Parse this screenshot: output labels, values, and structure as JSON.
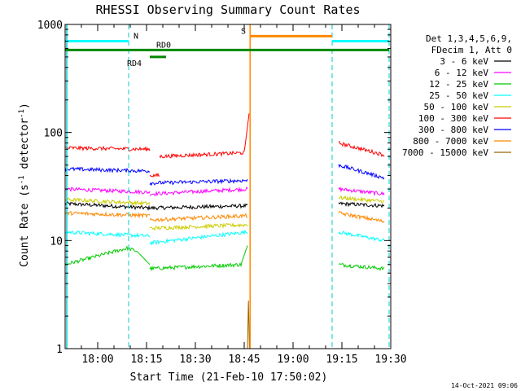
{
  "chart_data": {
    "type": "line",
    "title": "RHESSI Observing Summary Count Rates",
    "xlabel": "Start Time (21-Feb-10 17:50:02)",
    "ylabel": "Count Rate (s",
    "ylabel_sup1": "-1",
    "ylabel_mid": " detector",
    "ylabel_sup2": "-1",
    "ylabel_end": ")",
    "y_scale": "log",
    "ylim": [
      1,
      1000
    ],
    "xlim_minutes": [
      0,
      100
    ],
    "x_ticks": [
      {
        "t": 10,
        "label": "18:00"
      },
      {
        "t": 25,
        "label": "18:15"
      },
      {
        "t": 40,
        "label": "18:30"
      },
      {
        "t": 55,
        "label": "18:45"
      },
      {
        "t": 70,
        "label": "19:00"
      },
      {
        "t": 85,
        "label": "19:15"
      },
      {
        "t": 100,
        "label": "19:30"
      }
    ],
    "y_ticks": [
      {
        "v": 1,
        "label": "1"
      },
      {
        "v": 10,
        "label": "10"
      },
      {
        "v": 100,
        "label": "100"
      },
      {
        "v": 1000,
        "label": "1000"
      }
    ],
    "legend": {
      "position": "right",
      "header": [
        "Det 1,3,4,5,6,9,",
        "FDecim 1, Att 0"
      ]
    },
    "series": [
      {
        "name": "3 - 6 keV",
        "color": "#000000",
        "segments": [
          {
            "x": [
              0,
              26
            ],
            "y": [
              22,
              20
            ]
          },
          {
            "x": [
              26,
              56
            ],
            "y": [
              20,
              21
            ]
          },
          {
            "x": [
              84,
              98
            ],
            "y": [
              22,
              21
            ]
          }
        ]
      },
      {
        "name": "6 - 12 keV",
        "color": "#ff00ff",
        "segments": [
          {
            "x": [
              0,
              26
            ],
            "y": [
              30,
              28
            ]
          },
          {
            "x": [
              26,
              56
            ],
            "y": [
              27,
              30
            ]
          },
          {
            "x": [
              84,
              98
            ],
            "y": [
              30,
              27
            ]
          }
        ]
      },
      {
        "name": "12 - 25 keV",
        "color": "#00cc00",
        "segments": [
          {
            "x": [
              0,
              19,
              22,
              26
            ],
            "y": [
              6,
              8.5,
              8,
              6
            ]
          },
          {
            "x": [
              26,
              54,
              56
            ],
            "y": [
              5.5,
              6,
              9
            ]
          },
          {
            "x": [
              84,
              98
            ],
            "y": [
              6,
              5.5
            ]
          }
        ]
      },
      {
        "name": "25 - 50 keV",
        "color": "#00ffff",
        "segments": [
          {
            "x": [
              0,
              26
            ],
            "y": [
              12,
              11
            ]
          },
          {
            "x": [
              26,
              56
            ],
            "y": [
              9.5,
              12
            ]
          },
          {
            "x": [
              84,
              98
            ],
            "y": [
              12,
              10
            ]
          }
        ]
      },
      {
        "name": "50 - 100 keV",
        "color": "#cccc00",
        "segments": [
          {
            "x": [
              0,
              26
            ],
            "y": [
              24,
              22
            ]
          },
          {
            "x": [
              26,
              56
            ],
            "y": [
              13,
              14
            ]
          },
          {
            "x": [
              84,
              98
            ],
            "y": [
              25,
              23
            ]
          }
        ]
      },
      {
        "name": "100 - 300 keV",
        "color": "#ff0000",
        "segments": [
          {
            "x": [
              0,
              26
            ],
            "y": [
              72,
              70
            ]
          },
          {
            "x": [
              26,
              29
            ],
            "y": [
              40,
              40
            ]
          },
          {
            "x": [
              29,
              55,
              56.5
            ],
            "y": [
              60,
              65,
              150
            ]
          },
          {
            "x": [
              84,
              98
            ],
            "y": [
              80,
              62
            ]
          }
        ]
      },
      {
        "name": "300 - 800 keV",
        "color": "#0000ff",
        "segments": [
          {
            "x": [
              0,
              26
            ],
            "y": [
              46,
              44
            ]
          },
          {
            "x": [
              26,
              56
            ],
            "y": [
              34,
              36
            ]
          },
          {
            "x": [
              84,
              98
            ],
            "y": [
              50,
              38
            ]
          }
        ]
      },
      {
        "name": "800 - 7000 keV",
        "color": "#ff8800",
        "segments": [
          {
            "x": [
              0,
              26
            ],
            "y": [
              18,
              17
            ]
          },
          {
            "x": [
              26,
              56
            ],
            "y": [
              15.5,
              17
            ]
          },
          {
            "x": [
              84,
              98
            ],
            "y": [
              18,
              15
            ]
          }
        ]
      },
      {
        "name": "7000 - 15000 keV",
        "color": "#996600",
        "segments": [
          {
            "x": [
              56,
              56.3,
              56.6
            ],
            "y": [
              1,
              2.9,
              1
            ]
          }
        ]
      }
    ],
    "overlays": {
      "vlines_dashed": [
        {
          "t": 19.5,
          "color": "#00cccc"
        },
        {
          "t": 82,
          "color": "#00cccc"
        },
        {
          "t": 99.5,
          "color": "#00cccc"
        }
      ],
      "vlines_solid": [
        {
          "t": 0.5,
          "color": "#00cccc"
        },
        {
          "t": 56.8,
          "color": "#ff8800"
        }
      ],
      "bars": [
        {
          "label": "N",
          "color": "#00ffff",
          "y": 700,
          "segments": [
            [
              0,
              19.5
            ],
            [
              82,
              99.5
            ]
          ],
          "label_t": 21
        },
        {
          "label": "S",
          "color": "#ff8800",
          "y": 780,
          "segments": [
            [
              57,
              82
            ]
          ],
          "label_t": 54
        },
        {
          "label": "RD0",
          "color": "#008800",
          "y": 580,
          "segments": [
            [
              0,
              99.5
            ]
          ],
          "label_t": 28
        },
        {
          "label": "RD4",
          "color": "#008800",
          "y": 500,
          "segments": [
            [
              26,
              31
            ]
          ],
          "label_t": 19
        }
      ]
    }
  },
  "timestamp": "14-Oct-2021 09:06"
}
